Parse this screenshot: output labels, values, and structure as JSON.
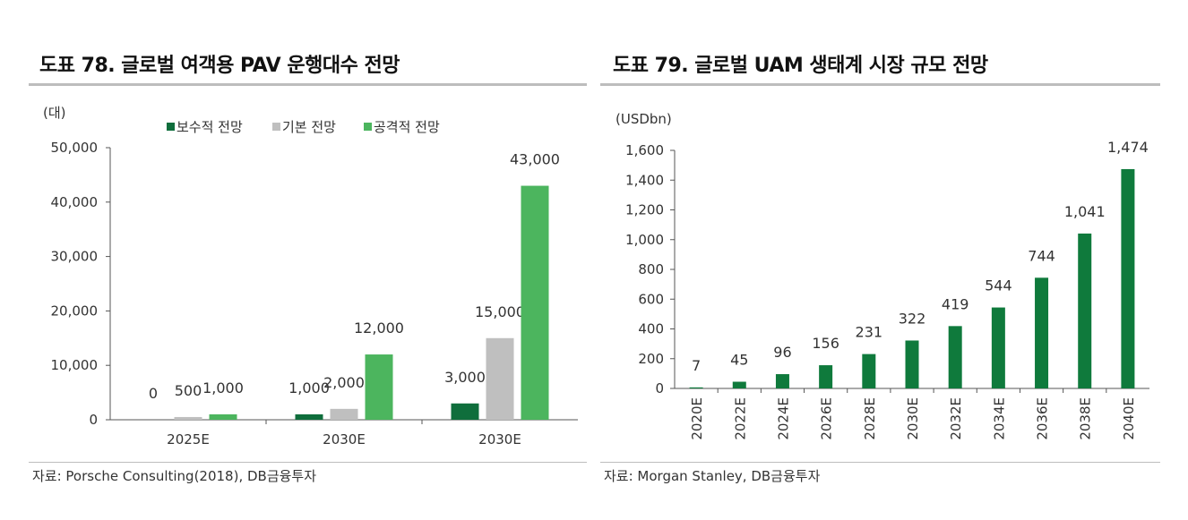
{
  "left": {
    "title": "도표 78. 글로벌 여객용 PAV 운행대수 전망",
    "source": "자료: Porsche Consulting(2018), DB금융투자",
    "chart_data": {
      "type": "bar",
      "unit": "(대)",
      "categories": [
        "2025E",
        "2030E",
        "2030E"
      ],
      "series": [
        {
          "name": "보수적 전망",
          "color": "#0f6e3c",
          "values": [
            0,
            1000,
            3000
          ]
        },
        {
          "name": "기본 전망",
          "color": "#bfbfbf",
          "values": [
            500,
            2000,
            15000
          ]
        },
        {
          "name": "공격적 전망",
          "color": "#4cb55e",
          "values": [
            1000,
            12000,
            43000
          ]
        }
      ],
      "data_labels": [
        [
          "0",
          "1,000",
          "3,000"
        ],
        [
          "500",
          "2,000",
          "15,000"
        ],
        [
          "1,000",
          "12,000",
          "43,000"
        ]
      ],
      "ylim": [
        0,
        50000
      ],
      "yticks": [
        0,
        10000,
        20000,
        30000,
        40000,
        50000
      ],
      "ytick_labels": [
        "0",
        "10,000",
        "20,000",
        "30,000",
        "40,000",
        "50,000"
      ],
      "legend_position": "top",
      "grid": false
    }
  },
  "right": {
    "title": "도표 79. 글로벌 UAM 생태계 시장 규모 전망",
    "source": "자료: Morgan Stanley, DB금융투자",
    "chart_data": {
      "type": "bar",
      "unit": "(USDbn)",
      "categories": [
        "2020E",
        "2022E",
        "2024E",
        "2026E",
        "2028E",
        "2030E",
        "2032E",
        "2034E",
        "2036E",
        "2038E",
        "2040E"
      ],
      "series": [
        {
          "color": "#0f7a3c",
          "values": [
            7,
            45,
            96,
            156,
            231,
            322,
            419,
            544,
            744,
            1041,
            1474
          ]
        }
      ],
      "data_labels": [
        "7",
        "45",
        "96",
        "156",
        "231",
        "322",
        "419",
        "544",
        "744",
        "1,041",
        "1,474"
      ],
      "ylim": [
        0,
        1600
      ],
      "yticks": [
        0,
        200,
        400,
        600,
        800,
        1000,
        1200,
        1400,
        1600
      ],
      "ytick_labels": [
        "0",
        "200",
        "400",
        "600",
        "800",
        "1,000",
        "1,200",
        "1,400",
        "1,600"
      ],
      "grid": false
    }
  }
}
